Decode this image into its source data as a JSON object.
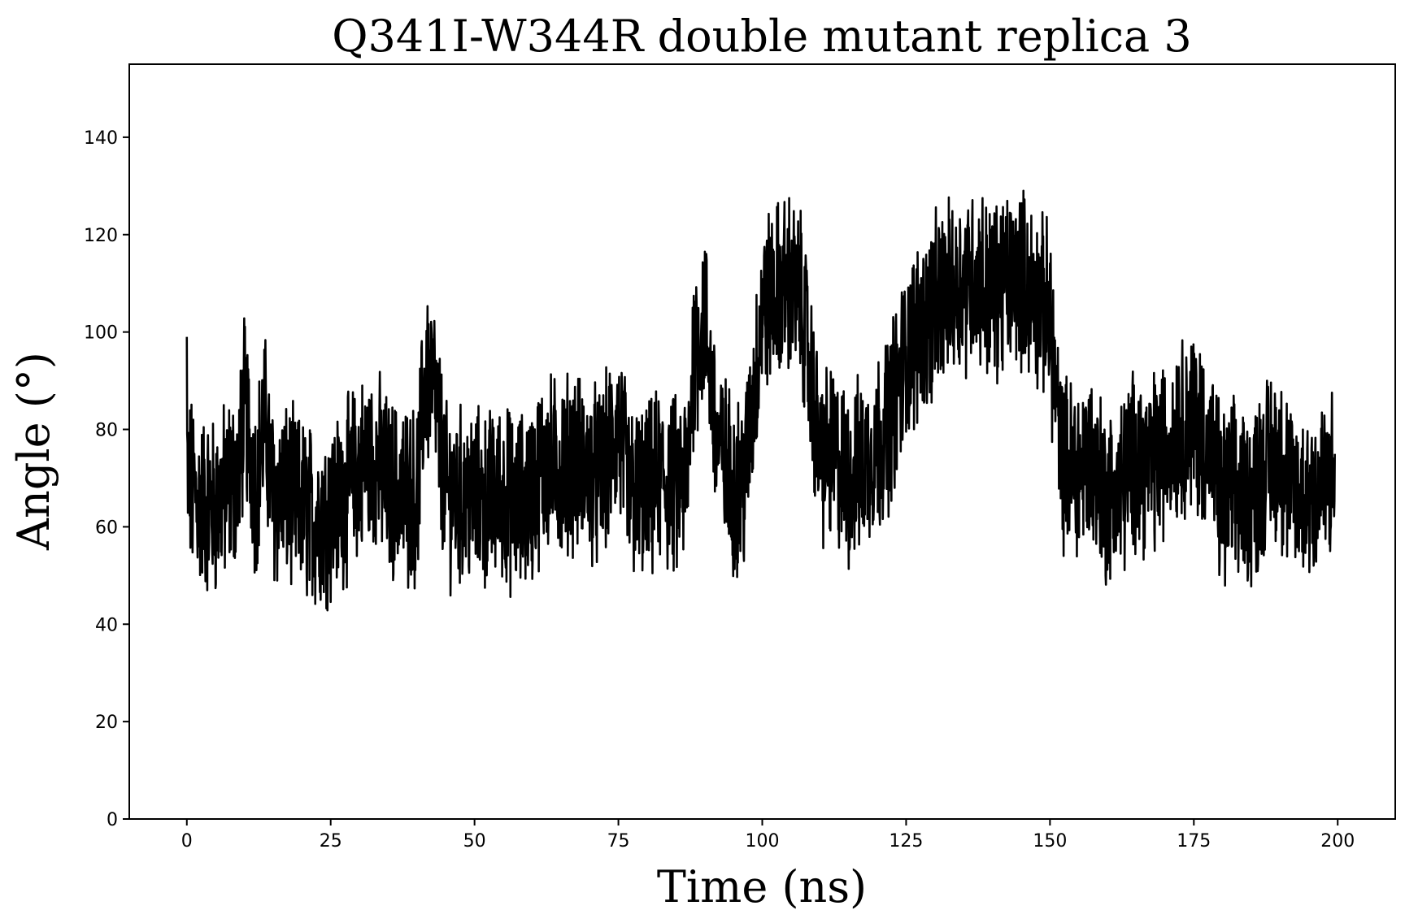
{
  "chart_data": {
    "type": "line",
    "title": "Q341I-W344R double mutant replica 3",
    "xlabel": "Time (ns)",
    "ylabel": "Angle (°)",
    "xlim": [
      -10,
      210
    ],
    "ylim": [
      0,
      155
    ],
    "xticks": [
      0,
      25,
      50,
      75,
      100,
      125,
      150,
      175,
      200
    ],
    "yticks": [
      0,
      20,
      40,
      60,
      80,
      100,
      120,
      140
    ],
    "xtick_labels": [
      "0",
      "25",
      "50",
      "75",
      "100",
      "125",
      "150",
      "175",
      "200"
    ],
    "ytick_labels": [
      "0",
      "20",
      "40",
      "60",
      "80",
      "100",
      "120",
      "140"
    ],
    "grid": false,
    "legend": "none",
    "line_color": "#000000",
    "series": [
      {
        "x": [
          0,
          2,
          5,
          7,
          9,
          10,
          12,
          13.5,
          15,
          17,
          20,
          22,
          25,
          27,
          30,
          33,
          35,
          37,
          40,
          41.5,
          43,
          45,
          47,
          50,
          52,
          55,
          57,
          60,
          62,
          65,
          67,
          70,
          72,
          75,
          77,
          80,
          82,
          85,
          87,
          88,
          90,
          92,
          95,
          97,
          100,
          102,
          105,
          107,
          110,
          112,
          115,
          117,
          120,
          122,
          125,
          127,
          130,
          132,
          135,
          137,
          140,
          142,
          145,
          147,
          150,
          152,
          155,
          157,
          160,
          162,
          165,
          167,
          170,
          172,
          175,
          177,
          180,
          182,
          185,
          187,
          190,
          192,
          195,
          197,
          199.5
        ],
        "y": [
          70,
          65,
          64,
          68,
          70,
          85,
          68,
          82,
          66,
          67,
          64,
          62,
          63,
          66,
          72,
          74,
          68,
          67,
          66,
          92,
          88,
          67,
          66,
          66,
          65,
          67,
          64,
          67,
          73,
          72,
          74,
          71,
          70,
          80,
          67,
          66,
          70,
          68,
          70,
          95,
          103,
          78,
          68,
          70,
          104,
          108,
          110,
          105,
          74,
          75,
          70,
          72,
          77,
          82,
          95,
          100,
          105,
          108,
          110,
          112,
          108,
          110,
          112,
          108,
          103,
          73,
          72,
          74,
          66,
          67,
          75,
          72,
          76,
          80,
          82,
          78,
          65,
          67,
          66,
          72,
          75,
          66,
          67,
          68,
          70
        ]
      }
    ]
  }
}
